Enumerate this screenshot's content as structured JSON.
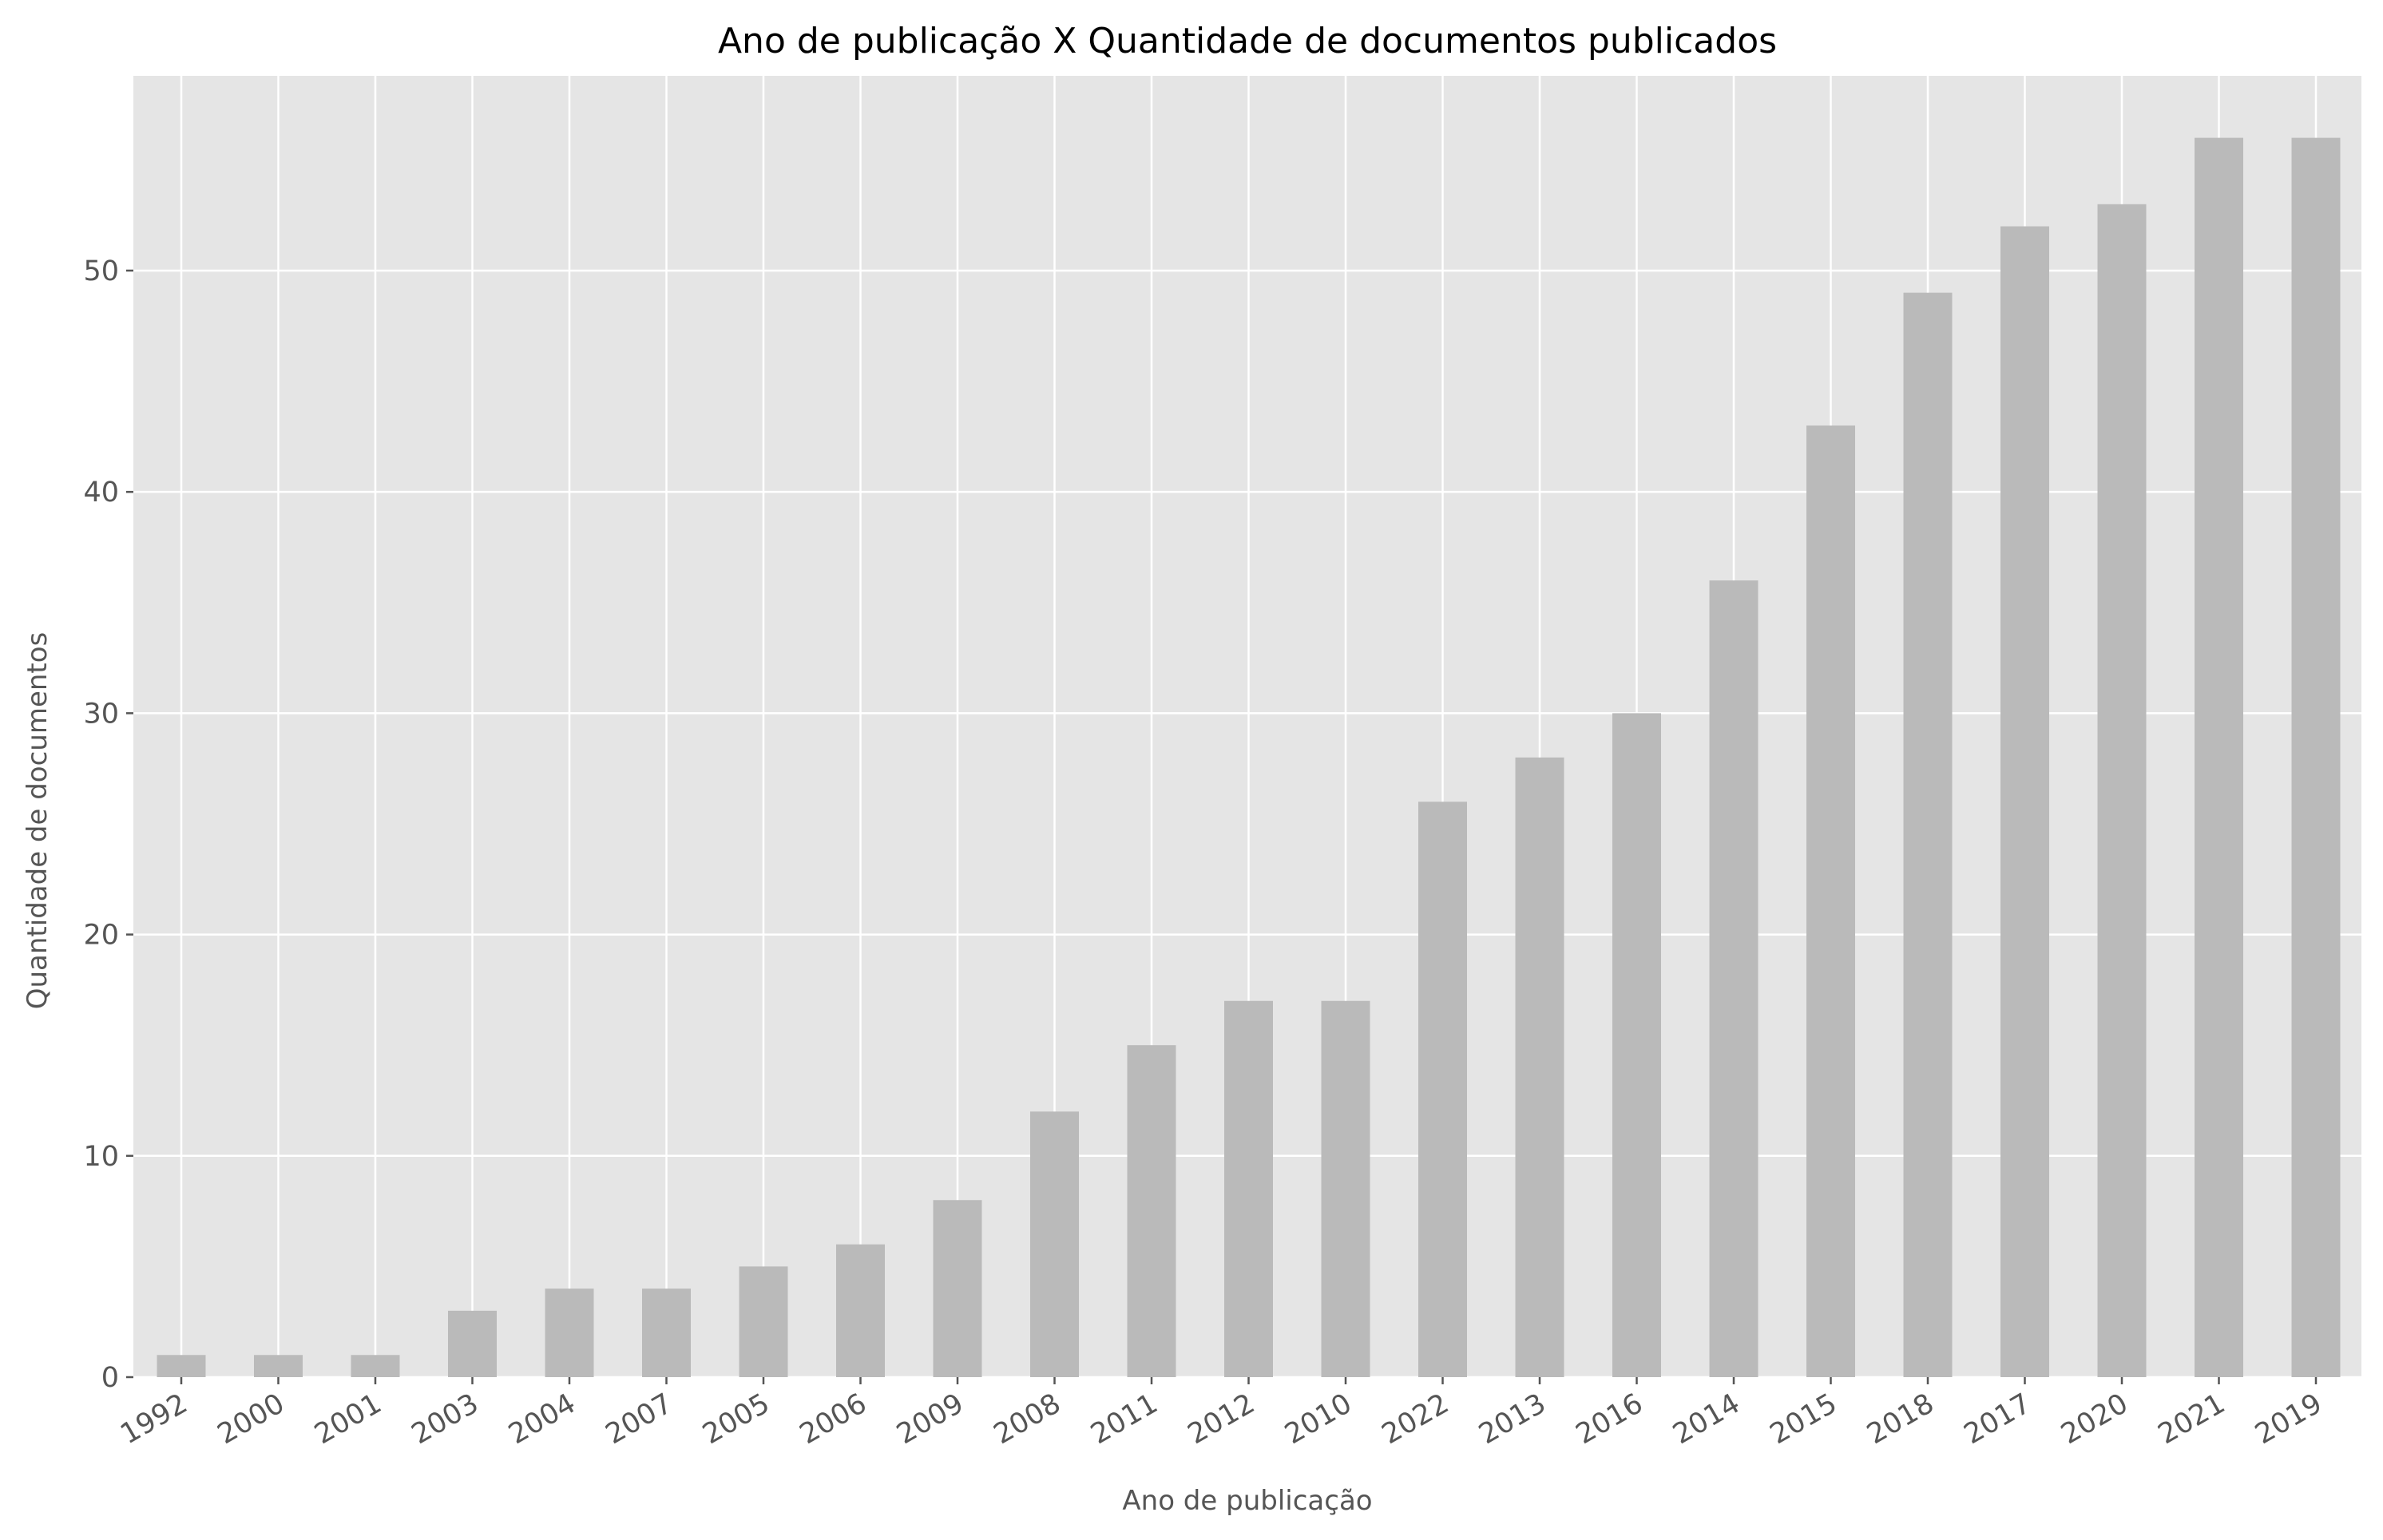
{
  "colors": {
    "plot_background": "#e5e5e5",
    "grid": "#ffffff",
    "bar": "#bababa",
    "tick_mark": "#555555"
  },
  "chart_data": {
    "type": "bar",
    "title": "Ano de publicação X Quantidade de documentos publicados",
    "xlabel": "Ano de publicação",
    "ylabel": "Quantidade de documentos",
    "categories": [
      "1992",
      "2000",
      "2001",
      "2003",
      "2004",
      "2007",
      "2005",
      "2006",
      "2009",
      "2008",
      "2011",
      "2012",
      "2010",
      "2022",
      "2013",
      "2016",
      "2014",
      "2015",
      "2018",
      "2017",
      "2020",
      "2021",
      "2019"
    ],
    "values": [
      1,
      1,
      1,
      3,
      4,
      4,
      5,
      6,
      8,
      12,
      15,
      17,
      17,
      26,
      28,
      30,
      36,
      43,
      49,
      52,
      53,
      56,
      56
    ],
    "ylim": [
      0,
      58.8
    ],
    "yticks": [
      0,
      10,
      20,
      30,
      40,
      50
    ],
    "grid": true,
    "legend": "none"
  }
}
